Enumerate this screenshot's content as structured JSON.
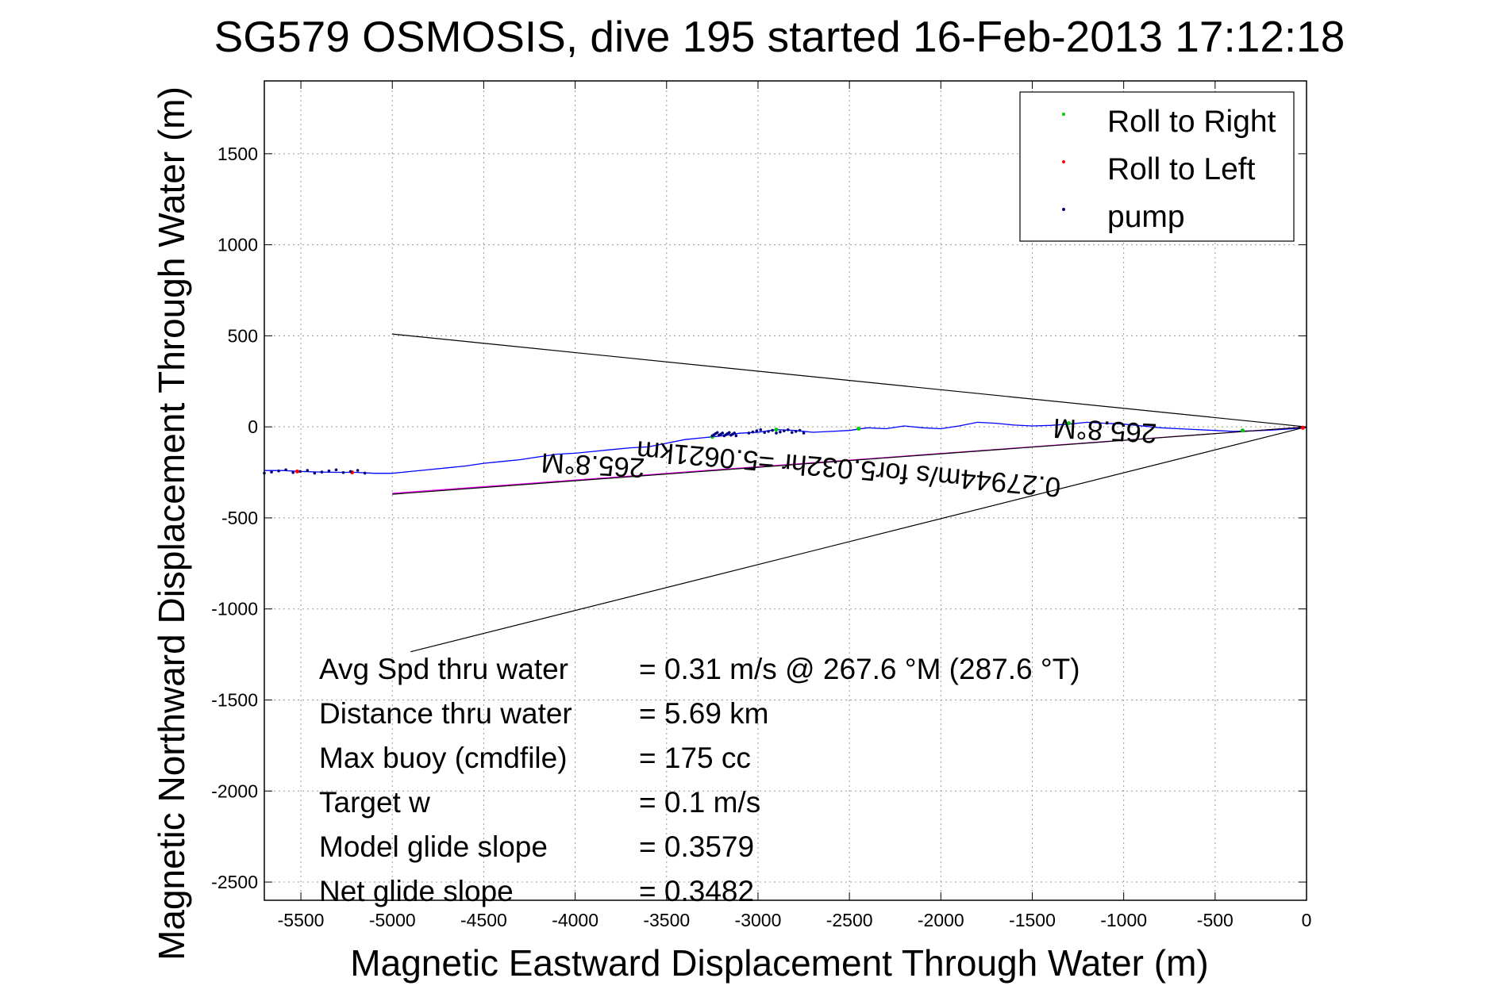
{
  "chart_data": {
    "type": "line",
    "title": "SG579 OSMOSIS, dive 195 started 16-Feb-2013 17:12:18",
    "xlabel": "Magnetic Eastward Displacement Through Water (m)",
    "ylabel": "Magnetic Northward Displacement Through Water (m)",
    "xlim": [
      -5700,
      0
    ],
    "ylim": [
      -2600,
      1900
    ],
    "xticks": [
      -5500,
      -5000,
      -4500,
      -4000,
      -3500,
      -3000,
      -2500,
      -2000,
      -1500,
      -1000,
      -500,
      0
    ],
    "yticks": [
      -2500,
      -2000,
      -1500,
      -1000,
      -500,
      0,
      500,
      1000,
      1500
    ],
    "grid": true,
    "legend": {
      "placement": "top-right",
      "entries": [
        {
          "label": "Roll to Right",
          "color": "#00cc00"
        },
        {
          "label": "Roll to Left",
          "color": "#ff0000"
        },
        {
          "label": "pump",
          "color": "#000080"
        }
      ]
    },
    "series": [
      {
        "role": "track",
        "color": "#0000ff",
        "x": [
          0,
          -100,
          -200,
          -300,
          -400,
          -500,
          -600,
          -700,
          -800,
          -900,
          -1000,
          -1100,
          -1200,
          -1300,
          -1400,
          -1500,
          -1600,
          -1700,
          -1800,
          -1900,
          -2000,
          -2100,
          -2200,
          -2300,
          -2400,
          -2500,
          -2600,
          -2700,
          -2800,
          -2900,
          -3000,
          -3100,
          -3200,
          -3300,
          -3400,
          -3500,
          -3600,
          -3700,
          -3800,
          -3900,
          -4000,
          -4100,
          -4200,
          -4300,
          -4400,
          -4500,
          -4600,
          -4700,
          -4800,
          -4900,
          -5000,
          -5100,
          -5200,
          -5300,
          -5400,
          -5500,
          -5600,
          -5700
        ],
        "y": [
          -5,
          -12,
          -18,
          -22,
          -25,
          -20,
          -15,
          -10,
          -5,
          5,
          15,
          20,
          25,
          15,
          8,
          5,
          10,
          20,
          25,
          5,
          -10,
          -5,
          5,
          -10,
          -5,
          -20,
          -25,
          -30,
          -20,
          -15,
          -30,
          -35,
          -50,
          -60,
          -70,
          -90,
          -110,
          -115,
          -125,
          -135,
          -145,
          -150,
          -165,
          -180,
          -190,
          -200,
          -215,
          -225,
          -235,
          -245,
          -255,
          -255,
          -250,
          -250,
          -248,
          -245,
          -240,
          -240
        ]
      },
      {
        "role": "wind-adjusted",
        "color": "#ff00ff",
        "x": [
          0,
          -5000
        ],
        "y": [
          0,
          -365
        ]
      },
      {
        "role": "bound-upper",
        "color": "#000000",
        "x": [
          0,
          -5000
        ],
        "y": [
          0,
          510
        ]
      },
      {
        "role": "bound-lower",
        "color": "#000000",
        "x": [
          0,
          -4900
        ],
        "y": [
          0,
          -1235
        ]
      },
      {
        "role": "midline",
        "color": "#000000",
        "x": [
          0,
          -5000
        ],
        "y": [
          0,
          -370
        ]
      }
    ],
    "markers": {
      "roll_right": {
        "x": [
          -350,
          -1300,
          -2450,
          -2900,
          -3250
        ],
        "y": [
          -20,
          20,
          -10,
          -15,
          -55
        ]
      },
      "roll_left": {
        "x": [
          -20,
          -5220,
          -5520
        ],
        "y": [
          -5,
          -250,
          -245
        ]
      },
      "pump": [
        {
          "x0": -3050,
          "x1": -2750,
          "y": -25
        },
        {
          "x0": -3250,
          "x1": -3120,
          "y": -40
        },
        {
          "x0": -5700,
          "x1": -5150,
          "y": -245
        }
      ]
    },
    "annotations": [
      {
        "text": "265.8°M",
        "x": -3900,
        "y": -160,
        "rotate": 183
      },
      {
        "text": "265.8°M",
        "x": -1100,
        "y": 30,
        "rotate": 183
      },
      {
        "text": "0.27944m/s for5.032hr =5.0621km",
        "x": -2500,
        "y": -180,
        "rotate": 185
      }
    ],
    "stats": [
      {
        "label": "Avg Spd thru water",
        "value": "=  0.31 m/s @ 267.6 °M (287.6 °T)"
      },
      {
        "label": "Distance thru water",
        "value": "=  5.69 km"
      },
      {
        "label": "Max buoy (cmdfile)",
        "value": "= 175 cc"
      },
      {
        "label": "Target w",
        "value": "= 0.1 m/s"
      },
      {
        "label": "Model glide slope",
        "value": "= 0.3579"
      },
      {
        "label": "Net glide slope",
        "value": "= 0.3482"
      }
    ]
  }
}
